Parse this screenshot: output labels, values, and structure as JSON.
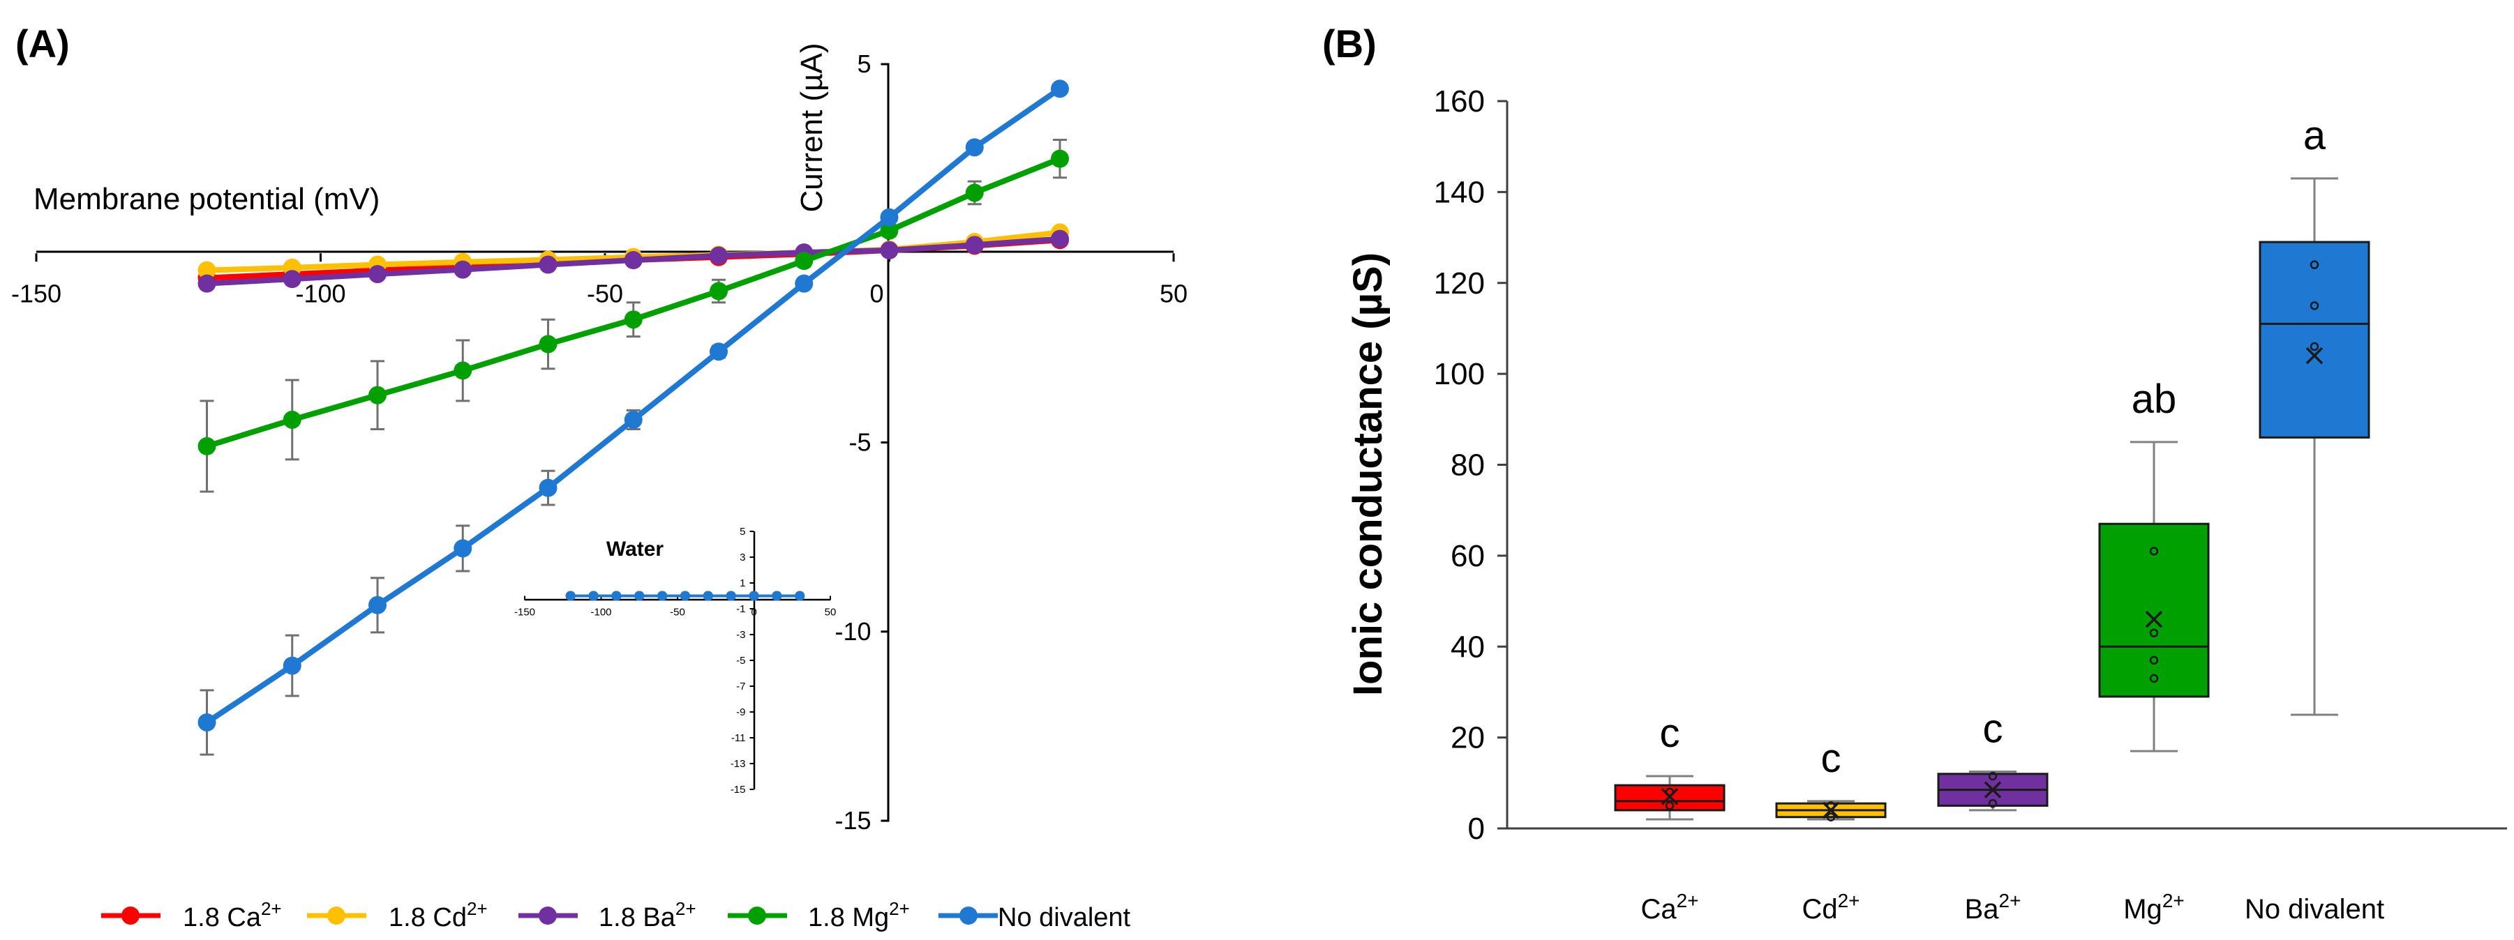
{
  "colors": {
    "ca": "#ff0000",
    "cd": "#ffc000",
    "ba": "#7030a0",
    "mg": "#00a000",
    "nodiv": "#1f78d1",
    "axis": "#000000",
    "whisker": "#808080"
  },
  "panel_a": {
    "label": "(A)",
    "xlabel": "Membrane potential (mV)",
    "ylabel": "Current (µA)",
    "x_ticks": [
      "-150",
      "-100",
      "-50",
      "0",
      "50"
    ],
    "y_ticks": [
      "5",
      "0",
      "-5",
      "-10",
      "-15"
    ],
    "inset": {
      "title": "Water",
      "x_ticks": [
        "-150",
        "-100",
        "-50",
        "0",
        "50"
      ],
      "y_ticks": [
        "5",
        "3",
        "1",
        "-1",
        "-3",
        "-5",
        "-7",
        "-9",
        "-11",
        "-13",
        "-15"
      ]
    },
    "legend": [
      {
        "prefix": "1.8 Ca",
        "sup": "2+",
        "color_key": "ca"
      },
      {
        "prefix": "1.8 Cd",
        "sup": "2+",
        "color_key": "cd"
      },
      {
        "prefix": "1.8 Ba",
        "sup": "2+",
        "color_key": "ba"
      },
      {
        "prefix": "1.8 Mg",
        "sup": "2+",
        "color_key": "mg"
      },
      {
        "prefix": "No divalent",
        "sup": "",
        "color_key": "nodiv"
      }
    ]
  },
  "panel_b": {
    "label": "(B)",
    "ylabel": "Ionic conductance (µS)",
    "y_ticks": [
      "0",
      "20",
      "40",
      "60",
      "80",
      "100",
      "120",
      "140",
      "160"
    ],
    "categories": [
      {
        "base": "Ca",
        "sup": "2+"
      },
      {
        "base": "Cd",
        "sup": "2+"
      },
      {
        "base": "Ba",
        "sup": "2+"
      },
      {
        "base": "Mg",
        "sup": "2+"
      },
      {
        "base": "No divalent",
        "sup": ""
      }
    ],
    "letters": [
      "c",
      "c",
      "c",
      "ab",
      "a"
    ]
  },
  "chart_data": [
    {
      "type": "line",
      "title": "(A)",
      "xlabel": "Membrane potential (mV)",
      "ylabel": "Current (µA)",
      "xlim": [
        -150,
        50
      ],
      "ylim": [
        -15,
        5
      ],
      "x": [
        -120,
        -105,
        -90,
        -75,
        -60,
        -45,
        -30,
        -15,
        0,
        15,
        30
      ],
      "series": [
        {
          "name": "1.8 Ca2+",
          "color_key": "ca",
          "values": [
            -0.65,
            -0.55,
            -0.45,
            -0.36,
            -0.27,
            -0.18,
            -0.1,
            -0.02,
            0.08,
            0.2,
            0.35
          ],
          "error": [
            0,
            0,
            0,
            0,
            0,
            0,
            0,
            0,
            0,
            0,
            0
          ]
        },
        {
          "name": "1.8 Cd2+",
          "color_key": "cd",
          "values": [
            -0.45,
            -0.38,
            -0.3,
            -0.23,
            -0.17,
            -0.1,
            -0.04,
            0.02,
            0.1,
            0.3,
            0.55
          ],
          "error": [
            0,
            0,
            0,
            0,
            0,
            0,
            0,
            0,
            0,
            0,
            0
          ]
        },
        {
          "name": "1.8 Ba2+",
          "color_key": "ba",
          "values": [
            -0.8,
            -0.68,
            -0.55,
            -0.43,
            -0.3,
            -0.18,
            -0.06,
            0.02,
            0.08,
            0.22,
            0.38
          ],
          "error": [
            0,
            0,
            0,
            0,
            0,
            0,
            0,
            0,
            0,
            0,
            0
          ]
        },
        {
          "name": "1.8 Mg2+",
          "color_key": "mg",
          "values": [
            -5.1,
            -4.4,
            -3.75,
            -3.1,
            -2.4,
            -1.75,
            -1.0,
            -0.2,
            0.6,
            1.6,
            2.5
          ],
          "error": [
            1.2,
            1.05,
            0.9,
            0.8,
            0.65,
            0.45,
            0.3,
            0.15,
            0.15,
            0.3,
            0.5
          ]
        },
        {
          "name": "No divalent",
          "color_key": "nodiv",
          "values": [
            -12.4,
            -10.9,
            -9.3,
            -7.8,
            -6.2,
            -4.4,
            -2.6,
            -0.8,
            0.95,
            2.8,
            4.35
          ],
          "error": [
            0.85,
            0.8,
            0.72,
            0.6,
            0.45,
            0.25,
            0.15,
            0.1,
            0.1,
            0.1,
            0.1
          ]
        }
      ],
      "inset": {
        "title": "Water",
        "xlim": [
          -150,
          50
        ],
        "ylim": [
          -15,
          5
        ],
        "x": [
          -120,
          -105,
          -90,
          -75,
          -60,
          -45,
          -30,
          -15,
          0,
          15,
          30
        ],
        "values": [
          0,
          0,
          0,
          0,
          0,
          0,
          0,
          0,
          0,
          0,
          0
        ]
      },
      "legend_position": "bottom"
    },
    {
      "type": "box",
      "title": "(B)",
      "xlabel": "",
      "ylabel": "Ionic conductance (µS)",
      "ylim": [
        0,
        160
      ],
      "categories": [
        "Ca2+",
        "Cd2+",
        "Ba2+",
        "Mg2+",
        "No divalent"
      ],
      "boxes": [
        {
          "color_key": "ca",
          "min": 2,
          "q1": 4,
          "median": 6,
          "q3": 9.5,
          "max": 11.5,
          "mean": 7,
          "points": [
            5,
            8
          ],
          "letter": "c"
        },
        {
          "color_key": "cd",
          "min": 2,
          "q1": 2.5,
          "median": 4,
          "q3": 5.5,
          "max": 6,
          "mean": 4,
          "points": [
            2.5,
            5
          ],
          "letter": "c"
        },
        {
          "color_key": "ba",
          "min": 4,
          "q1": 5,
          "median": 8.5,
          "q3": 12,
          "max": 12.5,
          "mean": 8.5,
          "points": [
            5.5,
            11.5
          ],
          "letter": "c"
        },
        {
          "color_key": "mg",
          "min": 17,
          "q1": 29,
          "median": 40,
          "q3": 67,
          "max": 85,
          "mean": 46,
          "points": [
            61,
            43,
            37,
            33
          ],
          "letter": "ab"
        },
        {
          "color_key": "nodiv",
          "min": 25,
          "q1": 86,
          "median": 111,
          "q3": 129,
          "max": 143,
          "mean": 104,
          "points": [
            124,
            115,
            106
          ],
          "letter": "a"
        }
      ]
    }
  ]
}
